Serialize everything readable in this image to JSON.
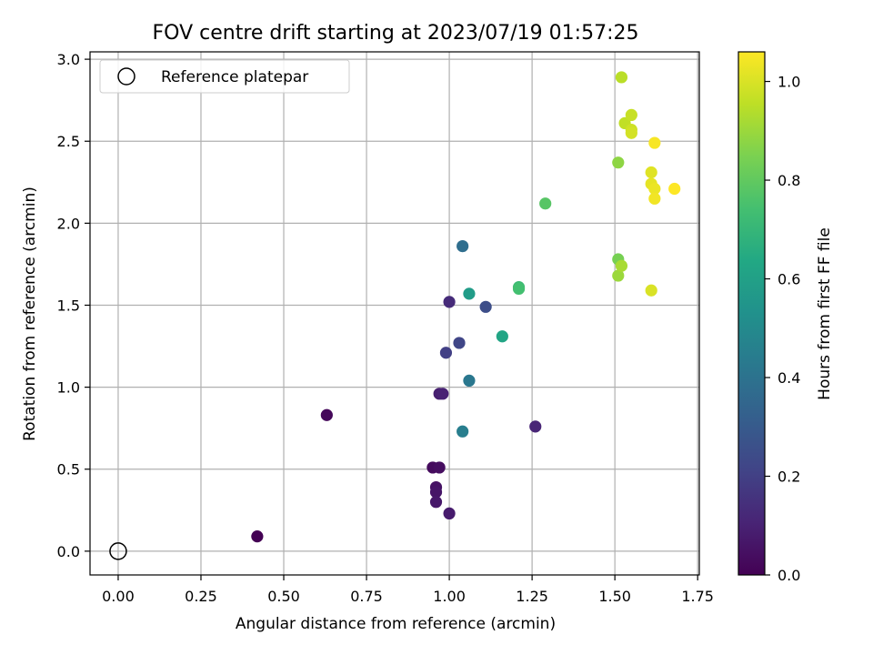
{
  "chart_data": {
    "type": "scatter",
    "title": "FOV centre drift starting at 2023/07/19 01:57:25",
    "xlabel": "Angular distance from reference (arcmin)",
    "ylabel": "Rotation from reference (arcmin)",
    "xlim": [
      -0.085,
      1.755
    ],
    "ylim": [
      -0.145,
      3.045
    ],
    "xticks": [
      0.0,
      0.25,
      0.5,
      0.75,
      1.0,
      1.25,
      1.5,
      1.75
    ],
    "xtick_labels": [
      "0.00",
      "0.25",
      "0.50",
      "0.75",
      "1.00",
      "1.25",
      "1.50",
      "1.75"
    ],
    "yticks": [
      0.0,
      0.5,
      1.0,
      1.5,
      2.0,
      2.5,
      3.0
    ],
    "ytick_labels": [
      "0.0",
      "0.5",
      "1.0",
      "1.5",
      "2.0",
      "2.5",
      "3.0"
    ],
    "grid": true,
    "legend": {
      "position": "upper-left",
      "entries": [
        {
          "label": "Reference platepar",
          "marker": "open-circle"
        }
      ]
    },
    "reference_point": {
      "x": 0.0,
      "y": 0.0
    },
    "colorbar": {
      "label": "Hours from first FF file",
      "colormap": "viridis",
      "range": [
        0.0,
        1.06
      ],
      "ticks": [
        0.0,
        0.2,
        0.4,
        0.6,
        0.8,
        1.0
      ],
      "tick_labels": [
        "0.0",
        "0.2",
        "0.4",
        "0.6",
        "0.8",
        "1.0"
      ]
    },
    "points": [
      {
        "x": 0.42,
        "y": 0.09,
        "t": 0.0
      },
      {
        "x": 0.63,
        "y": 0.83,
        "t": 0.02
      },
      {
        "x": 0.95,
        "y": 0.51,
        "t": 0.03
      },
      {
        "x": 0.97,
        "y": 0.51,
        "t": 0.04
      },
      {
        "x": 0.96,
        "y": 0.39,
        "t": 0.05
      },
      {
        "x": 0.96,
        "y": 0.36,
        "t": 0.06
      },
      {
        "x": 0.96,
        "y": 0.3,
        "t": 0.07
      },
      {
        "x": 1.0,
        "y": 0.23,
        "t": 0.08
      },
      {
        "x": 0.97,
        "y": 0.96,
        "t": 0.09
      },
      {
        "x": 0.98,
        "y": 0.96,
        "t": 0.1
      },
      {
        "x": 1.26,
        "y": 0.76,
        "t": 0.11
      },
      {
        "x": 1.0,
        "y": 1.52,
        "t": 0.13
      },
      {
        "x": 0.99,
        "y": 1.21,
        "t": 0.2
      },
      {
        "x": 1.03,
        "y": 1.27,
        "t": 0.22
      },
      {
        "x": 1.11,
        "y": 1.49,
        "t": 0.25
      },
      {
        "x": 1.04,
        "y": 1.86,
        "t": 0.38
      },
      {
        "x": 1.06,
        "y": 1.04,
        "t": 0.42
      },
      {
        "x": 1.04,
        "y": 0.73,
        "t": 0.45
      },
      {
        "x": 1.06,
        "y": 1.57,
        "t": 0.58
      },
      {
        "x": 1.16,
        "y": 1.31,
        "t": 0.62
      },
      {
        "x": 1.21,
        "y": 1.61,
        "t": 0.72
      },
      {
        "x": 1.21,
        "y": 1.6,
        "t": 0.74
      },
      {
        "x": 1.29,
        "y": 2.12,
        "t": 0.78
      },
      {
        "x": 1.51,
        "y": 1.78,
        "t": 0.84
      },
      {
        "x": 1.51,
        "y": 2.37,
        "t": 0.88
      },
      {
        "x": 1.51,
        "y": 1.68,
        "t": 0.9
      },
      {
        "x": 1.52,
        "y": 1.74,
        "t": 0.92
      },
      {
        "x": 1.52,
        "y": 2.89,
        "t": 0.95
      },
      {
        "x": 1.53,
        "y": 2.61,
        "t": 0.96
      },
      {
        "x": 1.55,
        "y": 2.66,
        "t": 0.97
      },
      {
        "x": 1.55,
        "y": 2.57,
        "t": 0.98
      },
      {
        "x": 1.55,
        "y": 2.55,
        "t": 0.99
      },
      {
        "x": 1.61,
        "y": 1.59,
        "t": 1.0
      },
      {
        "x": 1.61,
        "y": 2.31,
        "t": 1.01
      },
      {
        "x": 1.61,
        "y": 2.24,
        "t": 1.02
      },
      {
        "x": 1.62,
        "y": 2.21,
        "t": 1.03
      },
      {
        "x": 1.62,
        "y": 2.15,
        "t": 1.04
      },
      {
        "x": 1.62,
        "y": 2.49,
        "t": 1.05
      },
      {
        "x": 1.68,
        "y": 2.21,
        "t": 1.06
      }
    ]
  }
}
